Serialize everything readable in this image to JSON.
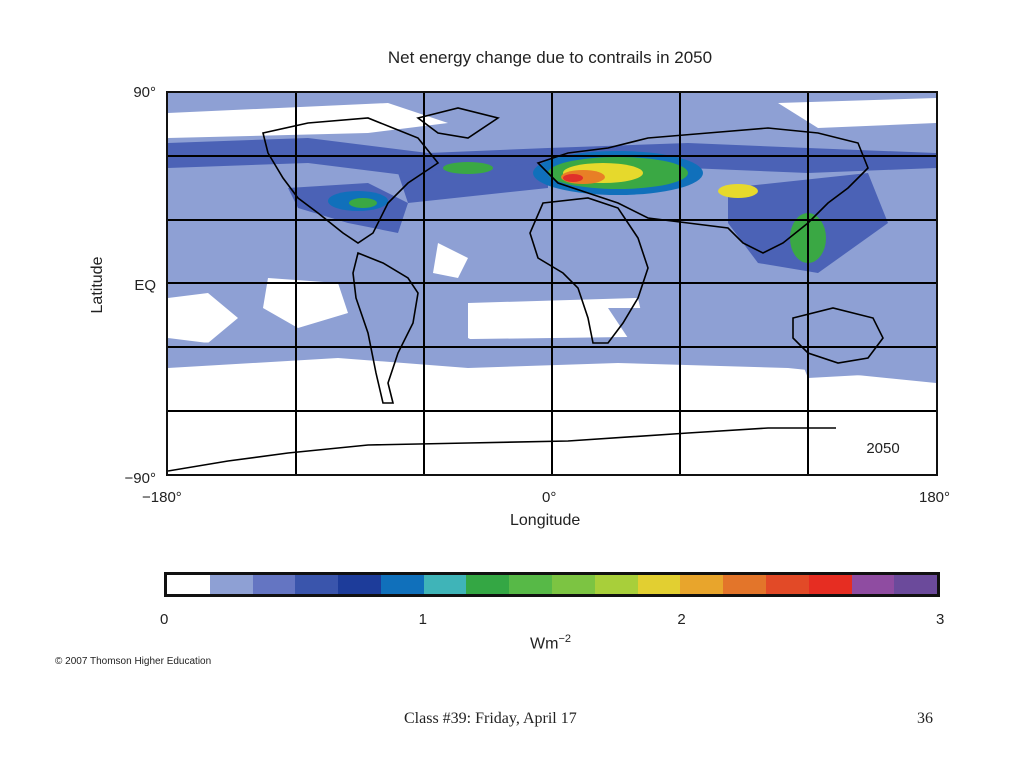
{
  "title": "Net energy change due to contrails in 2050",
  "map": {
    "year_label": "2050",
    "lat_ticks": [
      "90°",
      "EQ",
      "−90°"
    ],
    "lon_ticks": [
      "−180°",
      "0°",
      "180°"
    ],
    "xlabel": "Longitude",
    "ylabel": "Latitude",
    "colors": {
      "background": "#ffffff",
      "low": "#8ea0d4",
      "medium": "#4b62b6",
      "coast": "#000000",
      "grid": "#000000",
      "hot_green": "#3aa844",
      "hot_yellow": "#e6d92c",
      "hot_orange": "#e87f26",
      "hot_red": "#e0302a"
    }
  },
  "colorbar": {
    "colors": [
      "#ffffff",
      "#8ea0d4",
      "#6475c2",
      "#3a55ac",
      "#1d3c9a",
      "#1070bb",
      "#3fb4b8",
      "#34a744",
      "#57b947",
      "#7cc442",
      "#a8cf3a",
      "#e2cf31",
      "#e8a52c",
      "#e3752a",
      "#e24a27",
      "#e62d22",
      "#8f4ca1",
      "#6b4a9b"
    ],
    "ticks": [
      "0",
      "1",
      "2",
      "3"
    ],
    "tick_values": [
      0,
      1,
      2,
      3
    ],
    "range": [
      0,
      3
    ],
    "unit_base": "Wm",
    "unit_exp": "−2"
  },
  "copyright": "© 2007 Thomson Higher Education",
  "footer": {
    "caption": "Class #39: Friday, April 17",
    "page_number": "36"
  }
}
